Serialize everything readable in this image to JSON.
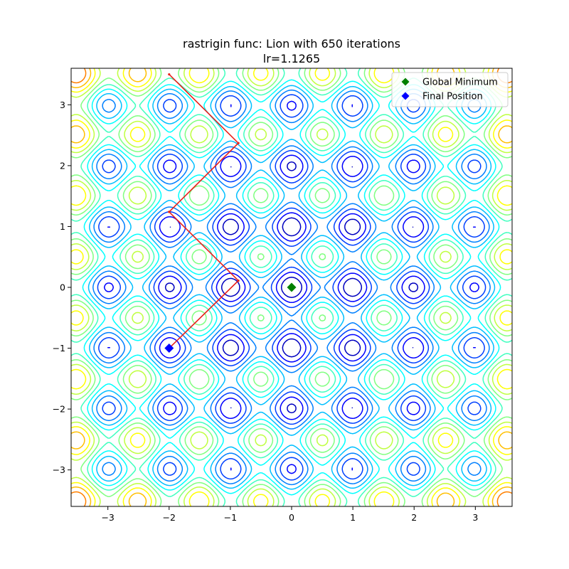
{
  "chart_data": {
    "type": "line",
    "title": "rastrigin func: Lion with 650 iterations",
    "subtitle": "lr=1.1265",
    "xlabel": "",
    "ylabel": "",
    "xlim": [
      -3.6,
      3.6
    ],
    "ylim": [
      -3.6,
      3.6
    ],
    "grid": false,
    "legend_placement": "top-right",
    "xticks": [
      -3,
      -2,
      -1,
      0,
      1,
      2,
      3
    ],
    "yticks": [
      -3,
      -2,
      -1,
      0,
      1,
      2,
      3
    ],
    "background": {
      "kind": "contour",
      "function": "rastrigin",
      "colormap": "jet",
      "level_max": 80
    },
    "series": [
      {
        "name": "",
        "kind": "trajectory",
        "color": "#e8201a",
        "points": [
          [
            -2.0,
            3.5
          ],
          [
            -0.87,
            2.37
          ],
          [
            -2.0,
            1.24
          ],
          [
            -0.87,
            0.11
          ],
          [
            -2.0,
            -1.0
          ]
        ]
      }
    ],
    "markers": [
      {
        "name": "Global Minimum",
        "x": 0,
        "y": 0,
        "color": "#008000",
        "shape": "diamond"
      },
      {
        "name": "Final Position",
        "x": -2.0,
        "y": -1.0,
        "color": "#0000ff",
        "shape": "diamond"
      }
    ],
    "legend": [
      {
        "label": "Global Minimum",
        "color": "#008000"
      },
      {
        "label": "Final Position",
        "color": "#0000ff"
      }
    ]
  }
}
